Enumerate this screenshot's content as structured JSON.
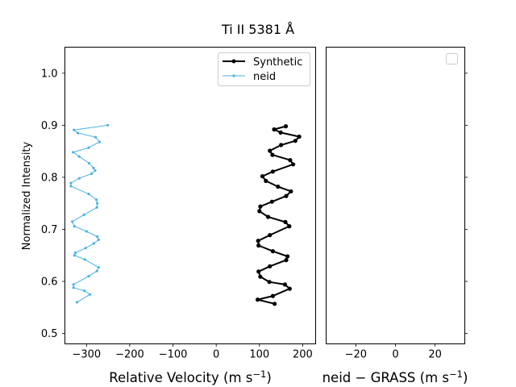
{
  "figure": {
    "title": "Ti II 5381 Å"
  },
  "chart_data": [
    {
      "type": "line",
      "panel": "left",
      "xlabel": "Relative Velocity (m s⁻¹)",
      "ylabel": "Normalized Intensity",
      "xlim": [
        -350,
        230
      ],
      "ylim": [
        0.48,
        1.05
      ],
      "xticks": [
        -300,
        -200,
        -100,
        0,
        100,
        200
      ],
      "xtick_labels": [
        "−300",
        "−200",
        "−100",
        "0",
        "100",
        "200"
      ],
      "yticks": [
        0.5,
        0.6,
        0.7,
        0.8,
        0.9,
        1.0
      ],
      "ytick_labels": [
        "0.5",
        "0.6",
        "0.7",
        "0.8",
        "0.9",
        "1.0"
      ],
      "legend_position": "upper-right",
      "grid": false,
      "series": [
        {
          "name": "Synthetic",
          "color": "#000000",
          "marker": "circle",
          "points": [
            [
              135,
              0.557
            ],
            [
              96,
              0.565
            ],
            [
              131,
              0.572
            ],
            [
              170,
              0.586
            ],
            [
              159,
              0.594
            ],
            [
              123,
              0.599
            ],
            [
              102,
              0.609
            ],
            [
              98,
              0.619
            ],
            [
              124,
              0.629
            ],
            [
              162,
              0.641
            ],
            [
              165,
              0.648
            ],
            [
              131,
              0.658
            ],
            [
              98,
              0.669
            ],
            [
              97,
              0.678
            ],
            [
              124,
              0.689
            ],
            [
              169,
              0.706
            ],
            [
              160,
              0.714
            ],
            [
              120,
              0.724
            ],
            [
              100,
              0.735
            ],
            [
              102,
              0.744
            ],
            [
              129,
              0.753
            ],
            [
              162,
              0.764
            ],
            [
              173,
              0.773
            ],
            [
              143,
              0.782
            ],
            [
              115,
              0.793
            ],
            [
              107,
              0.802
            ],
            [
              131,
              0.811
            ],
            [
              178,
              0.825
            ],
            [
              171,
              0.833
            ],
            [
              130,
              0.843
            ],
            [
              124,
              0.851
            ],
            [
              150,
              0.862
            ],
            [
              183,
              0.87
            ],
            [
              192,
              0.878
            ],
            [
              149,
              0.886
            ],
            [
              134,
              0.892
            ],
            [
              161,
              0.898
            ]
          ]
        },
        {
          "name": "neid",
          "color": "#4cb3e0",
          "marker": "circle",
          "points": [
            [
              -322,
              0.56
            ],
            [
              -292,
              0.575
            ],
            [
              -305,
              0.582
            ],
            [
              -330,
              0.588
            ],
            [
              -330,
              0.594
            ],
            [
              -295,
              0.61
            ],
            [
              -276,
              0.62
            ],
            [
              -272,
              0.627
            ],
            [
              -304,
              0.642
            ],
            [
              -328,
              0.65
            ],
            [
              -326,
              0.655
            ],
            [
              -302,
              0.664
            ],
            [
              -283,
              0.673
            ],
            [
              -272,
              0.68
            ],
            [
              -275,
              0.686
            ],
            [
              -300,
              0.696
            ],
            [
              -328,
              0.706
            ],
            [
              -333,
              0.715
            ],
            [
              -306,
              0.728
            ],
            [
              -276,
              0.742
            ],
            [
              -275,
              0.75
            ],
            [
              -277,
              0.757
            ],
            [
              -295,
              0.768
            ],
            [
              -336,
              0.783
            ],
            [
              -336,
              0.789
            ],
            [
              -317,
              0.798
            ],
            [
              -288,
              0.807
            ],
            [
              -280,
              0.813
            ],
            [
              -284,
              0.818
            ],
            [
              -294,
              0.827
            ],
            [
              -317,
              0.84
            ],
            [
              -331,
              0.848
            ],
            [
              -295,
              0.857
            ],
            [
              -270,
              0.868
            ],
            [
              -279,
              0.877
            ],
            [
              -320,
              0.885
            ],
            [
              -329,
              0.891
            ],
            [
              -251,
              0.9
            ]
          ]
        }
      ]
    },
    {
      "type": "line",
      "panel": "right",
      "xlabel": "neid − GRASS (m s⁻¹)",
      "xlim": [
        -35,
        35
      ],
      "ylim": [
        0.48,
        1.05
      ],
      "xticks": [
        -20,
        0,
        20
      ],
      "xtick_labels": [
        "−20",
        "0",
        "20"
      ],
      "legend_position": "upper-right",
      "series": []
    }
  ]
}
